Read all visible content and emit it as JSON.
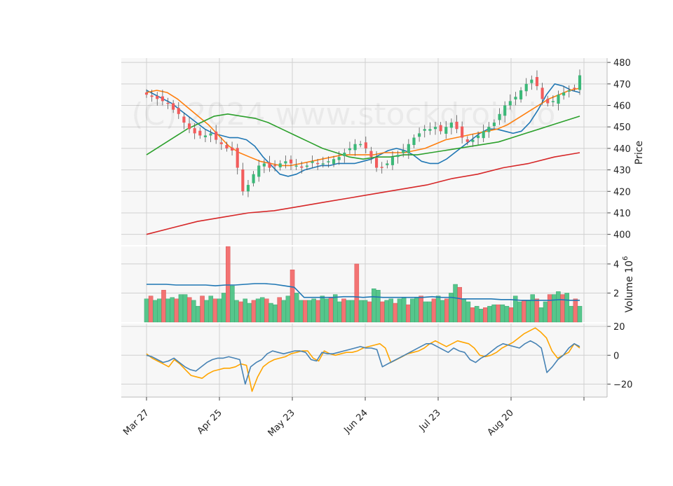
{
  "watermark": "(C) 2024 www.stockdroid.io",
  "chart_data": {
    "type": "candlestick",
    "x_ticks": [
      "Mar 27",
      "Apr 25",
      "May 23",
      "Jun 24",
      "Jul 23",
      "Aug 20"
    ],
    "panels": [
      {
        "name": "price",
        "ylabel": "Price",
        "ylim": [
          395,
          482
        ],
        "yticks": [
          400,
          410,
          420,
          430,
          440,
          450,
          460,
          470,
          480
        ],
        "grid": true,
        "candles_close_approx": [
          465,
          464,
          463,
          462,
          461,
          458,
          456,
          452,
          449,
          447,
          446,
          446,
          447,
          444,
          442,
          440,
          439,
          431,
          420,
          423,
          428,
          432,
          433,
          431,
          432,
          433,
          434,
          433,
          432,
          431,
          432,
          434,
          433,
          433,
          434,
          435,
          436,
          438,
          440,
          442,
          442,
          440,
          436,
          431,
          431,
          433,
          436,
          437,
          439,
          442,
          445,
          447,
          449,
          449,
          450,
          448,
          450,
          452,
          449,
          445,
          443,
          444,
          446,
          448,
          450,
          452,
          456,
          460,
          462,
          464,
          467,
          470,
          472,
          469,
          463,
          461,
          462,
          465,
          466,
          467,
          468,
          474
        ],
        "moving_averages": [
          {
            "color": "#1f77b4",
            "values": [
              467,
              465,
              463,
              461,
              458,
              455,
              452,
              449,
              447,
              446,
              445,
              445,
              444,
              441,
              436,
              432,
              428,
              427,
              428,
              430,
              431,
              432,
              432,
              433,
              433,
              433,
              434,
              435,
              437,
              439,
              440,
              439,
              437,
              434,
              433,
              433,
              435,
              438,
              441,
              444,
              447,
              449,
              449,
              448,
              447,
              448,
              452,
              458,
              465,
              470,
              469,
              467,
              466
            ]
          },
          {
            "color": "#ff7f0e",
            "values": [
              466,
              467,
              466,
              463,
              459,
              455,
              451,
              446,
              441,
              438,
              436,
              434,
              433,
              432,
              432,
              433,
              434,
              435,
              436,
              437,
              437,
              437,
              437,
              438,
              438,
              438,
              439,
              440,
              442,
              444,
              445,
              446,
              447,
              448,
              449,
              451,
              454,
              457,
              460,
              463,
              465,
              467,
              468
            ]
          },
          {
            "color": "#2ca02c",
            "values": [
              437,
              441,
              445,
              449,
              452,
              455,
              456,
              455,
              454,
              452,
              449,
              446,
              443,
              440,
              438,
              436,
              435,
              436,
              436,
              437,
              437,
              438,
              439,
              440,
              441,
              442,
              443,
              445,
              447,
              449,
              451,
              453,
              455
            ]
          },
          {
            "color": "#d62728",
            "values": [
              400,
              403,
              406,
              408,
              410,
              411,
              413,
              415,
              417,
              419,
              421,
              423,
              426,
              428,
              431,
              433,
              436,
              438
            ]
          }
        ]
      },
      {
        "name": "volume",
        "ylabel": "Volume  10",
        "ylabel_exp": "6",
        "ylim": [
          0,
          5.2
        ],
        "yticks": [
          2,
          4
        ],
        "grid": true,
        "values": [
          1.6,
          1.8,
          1.5,
          1.6,
          2.2,
          1.6,
          1.7,
          1.6,
          1.9,
          1.9,
          1.7,
          1.5,
          1.1,
          1.8,
          1.5,
          1.8,
          1.6,
          1.6,
          2.0,
          5.2,
          2.5,
          1.5,
          1.4,
          1.6,
          1.3,
          1.5,
          1.6,
          1.7,
          1.6,
          1.3,
          1.2,
          1.7,
          1.5,
          1.8,
          3.6,
          2.0,
          1.5,
          1.5,
          1.5,
          1.6,
          1.5,
          1.8,
          1.6,
          1.7,
          1.9,
          1.4,
          1.6,
          1.5,
          1.5,
          4.0,
          1.5,
          1.5,
          1.4,
          2.3,
          2.2,
          1.4,
          1.5,
          1.6,
          1.3,
          1.6,
          1.7,
          1.2,
          1.6,
          1.7,
          1.8,
          1.4,
          1.4,
          1.6,
          1.8,
          1.5,
          1.6,
          2.0,
          2.6,
          2.4,
          1.6,
          1.4,
          1.0,
          1.1,
          0.9,
          1.0,
          1.1,
          1.2,
          1.2,
          1.2,
          1.1,
          1.0,
          1.8,
          1.4,
          1.5,
          1.5,
          1.9,
          1.6,
          1.0,
          1.4,
          1.9,
          1.9,
          2.1,
          1.9,
          2.0,
          1.1,
          1.6,
          1.1
        ],
        "average_line": [
          2.6,
          2.6,
          2.6,
          2.55,
          2.55,
          2.55,
          2.55,
          2.5,
          2.55,
          2.55,
          2.6,
          2.65,
          2.65,
          2.6,
          2.5,
          2.4,
          1.7,
          1.7,
          1.7,
          1.7,
          1.75,
          1.75,
          1.7,
          1.75,
          1.7,
          1.7,
          1.7,
          1.7,
          1.7,
          1.75,
          1.7,
          1.7,
          1.6,
          1.6,
          1.6,
          1.6,
          1.55,
          1.55,
          1.5,
          1.5,
          1.5,
          1.5,
          1.55,
          1.5,
          1.5
        ]
      },
      {
        "name": "oscillator",
        "ylim": [
          -29,
          22
        ],
        "yticks": [
          20,
          0,
          -20
        ],
        "grid": true,
        "series": [
          {
            "color": "#ffa500",
            "values": [
              1,
              -2,
              -4,
              -6,
              -8,
              -3,
              -6,
              -10,
              -14,
              -15,
              -16,
              -13,
              -11,
              -10,
              -9,
              -9,
              -8,
              -6,
              -7,
              -25,
              -15,
              -8,
              -5,
              -3,
              -2,
              -1,
              1,
              2,
              3,
              3,
              -2,
              -4,
              3,
              1,
              0,
              1,
              2,
              2,
              3,
              5,
              6,
              7,
              8,
              5,
              -5,
              -3,
              -1,
              1,
              2,
              3,
              5,
              8,
              10,
              8,
              6,
              8,
              10,
              9,
              8,
              5,
              0,
              -1,
              0,
              2,
              5,
              7,
              9,
              12,
              15,
              17,
              19,
              16,
              12,
              3,
              -2,
              0,
              2,
              8,
              5
            ]
          },
          {
            "color": "#4682b4",
            "values": [
              0,
              -1,
              -3,
              -5,
              -4,
              -2,
              -5,
              -8,
              -10,
              -11,
              -8,
              -5,
              -3,
              -2,
              -2,
              -1,
              -2,
              -3,
              -20,
              -8,
              -5,
              -3,
              1,
              3,
              2,
              1,
              2,
              3,
              3,
              2,
              -3,
              -4,
              2,
              1,
              1,
              2,
              3,
              4,
              5,
              6,
              5,
              5,
              4,
              -8,
              -6,
              -4,
              -2,
              0,
              2,
              4,
              6,
              8,
              8,
              6,
              4,
              2,
              5,
              3,
              2,
              -3,
              -5,
              -2,
              0,
              3,
              6,
              8,
              7,
              6,
              5,
              8,
              10,
              8,
              5,
              -12,
              -8,
              -3,
              0,
              5,
              8,
              6
            ]
          }
        ]
      }
    ]
  }
}
